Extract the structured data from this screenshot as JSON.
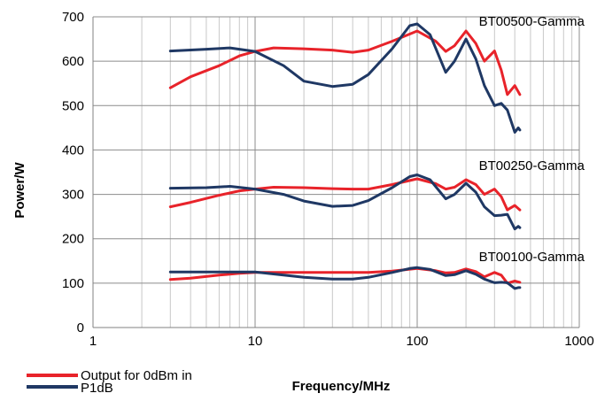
{
  "chart_data": {
    "type": "line",
    "x_scale": "log",
    "xlim": [
      1,
      1000
    ],
    "ylim": [
      0,
      700
    ],
    "x_ticks": [
      "1",
      "10",
      "100",
      "1000"
    ],
    "y_ticks": [
      "0",
      "100",
      "200",
      "300",
      "400",
      "500",
      "600",
      "700"
    ],
    "xlabel": "Frequency/MHz",
    "ylabel": "Power/W",
    "grid": "log-minor vertical, major horizontal",
    "legend_position": "bottom-left",
    "legend": [
      {
        "label": "Output for 0dBm in",
        "color": "#e8232a"
      },
      {
        "label": "P1dB",
        "color": "#1f3864"
      }
    ],
    "annotations": [
      {
        "text": "BT00500-Gamma",
        "x": 240,
        "y": 680
      },
      {
        "text": "BT00250-Gamma",
        "x": 240,
        "y": 355
      },
      {
        "text": "BT00100-Gamma",
        "x": 240,
        "y": 150
      }
    ],
    "series": [
      {
        "legend": "Output for 0dBm in",
        "model": "BT00500-Gamma",
        "color": "#e8232a",
        "x": [
          3,
          4,
          6,
          8,
          10,
          13,
          20,
          30,
          40,
          50,
          70,
          100,
          130,
          150,
          170,
          200,
          230,
          260,
          300,
          330,
          360,
          400,
          430
        ],
        "y": [
          540,
          565,
          590,
          612,
          622,
          630,
          628,
          625,
          620,
          625,
          645,
          668,
          645,
          622,
          635,
          668,
          640,
          600,
          623,
          580,
          525,
          545,
          525
        ]
      },
      {
        "legend": "P1dB",
        "model": "BT00500-Gamma",
        "color": "#1f3864",
        "x": [
          3,
          5,
          7,
          10,
          15,
          20,
          30,
          40,
          50,
          70,
          90,
          100,
          120,
          150,
          170,
          200,
          230,
          260,
          300,
          330,
          360,
          400,
          420,
          430
        ],
        "y": [
          623,
          627,
          630,
          622,
          590,
          555,
          543,
          548,
          570,
          628,
          680,
          684,
          660,
          575,
          600,
          650,
          605,
          545,
          500,
          505,
          490,
          440,
          450,
          445
        ]
      },
      {
        "legend": "Output for 0dBm in",
        "model": "BT00250-Gamma",
        "color": "#e8232a",
        "x": [
          3,
          4,
          6,
          8,
          10,
          13,
          20,
          30,
          40,
          50,
          70,
          100,
          130,
          150,
          170,
          200,
          230,
          260,
          300,
          330,
          360,
          400,
          430
        ],
        "y": [
          272,
          282,
          298,
          308,
          312,
          316,
          315,
          313,
          312,
          312,
          322,
          335,
          324,
          312,
          316,
          333,
          322,
          300,
          312,
          295,
          265,
          275,
          265
        ]
      },
      {
        "legend": "P1dB",
        "model": "BT00250-Gamma",
        "color": "#1f3864",
        "x": [
          3,
          5,
          7,
          10,
          15,
          20,
          30,
          40,
          50,
          70,
          90,
          100,
          120,
          150,
          170,
          200,
          230,
          260,
          300,
          330,
          360,
          400,
          420,
          430
        ],
        "y": [
          314,
          315,
          318,
          312,
          300,
          285,
          273,
          275,
          286,
          315,
          340,
          344,
          333,
          290,
          300,
          325,
          305,
          272,
          252,
          253,
          255,
          222,
          228,
          225
        ]
      },
      {
        "legend": "Output for 0dBm in",
        "model": "BT00100-Gamma",
        "color": "#e8232a",
        "x": [
          3,
          4,
          6,
          8,
          10,
          13,
          20,
          30,
          40,
          50,
          70,
          100,
          130,
          150,
          170,
          200,
          230,
          260,
          300,
          330,
          360,
          400,
          430
        ],
        "y": [
          108,
          111,
          118,
          122,
          124,
          124,
          124,
          124,
          124,
          124,
          127,
          133,
          128,
          123,
          124,
          132,
          126,
          114,
          124,
          118,
          100,
          105,
          102
        ]
      },
      {
        "legend": "P1dB",
        "model": "BT00100-Gamma",
        "color": "#1f3864",
        "x": [
          3,
          5,
          7,
          10,
          15,
          20,
          30,
          40,
          50,
          70,
          90,
          100,
          120,
          150,
          170,
          200,
          230,
          260,
          300,
          330,
          360,
          400,
          420,
          430
        ],
        "y": [
          125,
          125,
          125,
          125,
          118,
          113,
          109,
          109,
          113,
          124,
          133,
          135,
          131,
          117,
          119,
          128,
          120,
          109,
          101,
          102,
          101,
          88,
          90,
          90
        ]
      }
    ]
  }
}
